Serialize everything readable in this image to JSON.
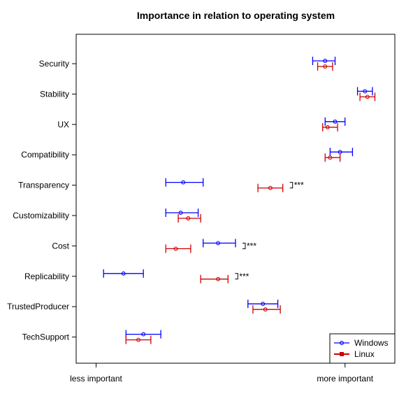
{
  "chart_data": {
    "type": "scatter",
    "title": "Importance in relation to operating system",
    "xlabel": "",
    "ylabel": "",
    "xlim": [
      -0.08,
      1.2
    ],
    "x_tick_values": [
      0,
      1
    ],
    "x_tick_labels": [
      "less important",
      "more important"
    ],
    "categories": [
      "Security",
      "Stability",
      "UX",
      "Compatibility",
      "Transparency",
      "Customizability",
      "Cost",
      "Replicability",
      "TrustedProducer",
      "TechSupport"
    ],
    "series": [
      {
        "name": "Windows",
        "color": "#0000ff",
        "values": [
          0.92,
          1.08,
          0.96,
          0.98,
          0.35,
          0.34,
          0.49,
          0.11,
          0.67,
          0.19
        ],
        "ci_low": [
          0.87,
          1.05,
          0.92,
          0.94,
          0.28,
          0.28,
          0.43,
          0.03,
          0.61,
          0.12
        ],
        "ci_high": [
          0.96,
          1.11,
          1.0,
          1.03,
          0.43,
          0.41,
          0.56,
          0.19,
          0.73,
          0.26
        ]
      },
      {
        "name": "Linux",
        "color": "#cc0000",
        "values": [
          0.92,
          1.09,
          0.93,
          0.94,
          0.7,
          0.37,
          0.32,
          0.49,
          0.68,
          0.17
        ],
        "ci_low": [
          0.89,
          1.06,
          0.91,
          0.92,
          0.65,
          0.33,
          0.28,
          0.42,
          0.63,
          0.12
        ],
        "ci_high": [
          0.95,
          1.12,
          0.97,
          0.98,
          0.75,
          0.42,
          0.38,
          0.53,
          0.74,
          0.22
        ]
      }
    ],
    "significance": [
      {
        "category": "Transparency",
        "label": "***"
      },
      {
        "category": "Cost",
        "label": "***"
      },
      {
        "category": "Replicability",
        "label": "***"
      }
    ],
    "legend_position": "bottom-right",
    "grid": false
  }
}
